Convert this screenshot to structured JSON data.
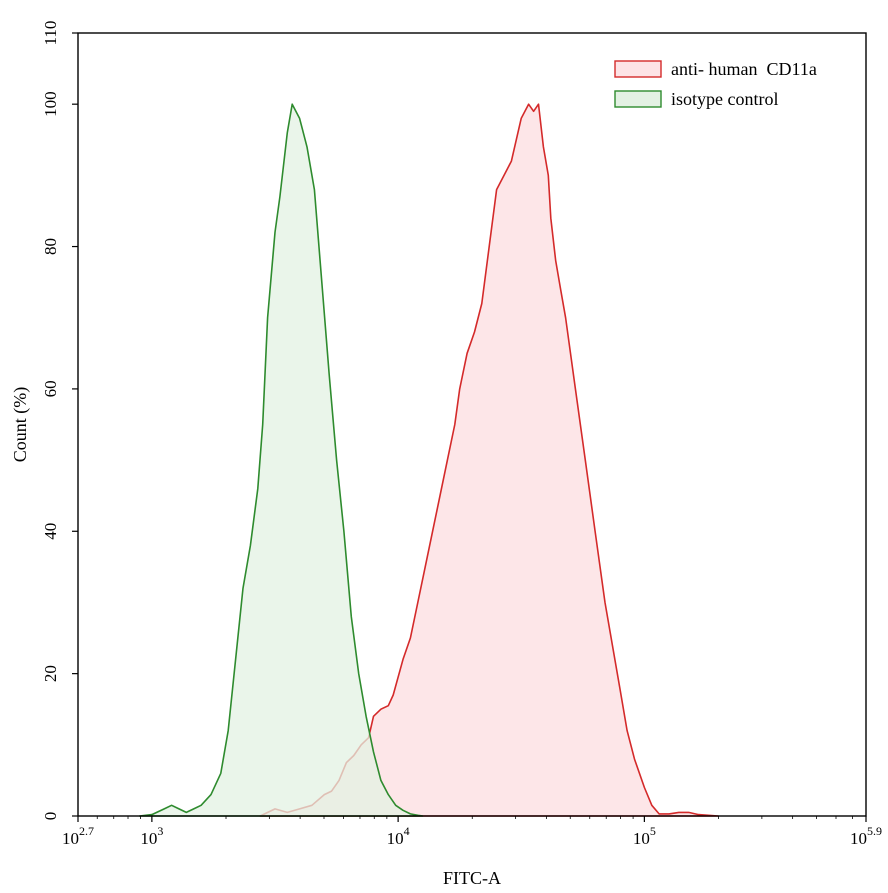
{
  "chart_data": {
    "type": "area",
    "title": "",
    "xlabel": "FITC-A",
    "ylabel": "Count (%)",
    "x_scale": "log10",
    "xlim": [
      2.7,
      5.9
    ],
    "ylim": [
      0,
      110
    ],
    "grid": false,
    "legend_position": "top-right",
    "x_ticks": [
      {
        "base": "10",
        "exp": "2.7",
        "value": 2.7
      },
      {
        "base": "10",
        "exp": "3",
        "value": 3
      },
      {
        "base": "10",
        "exp": "4",
        "value": 4
      },
      {
        "base": "10",
        "exp": "5",
        "value": 5
      },
      {
        "base": "10",
        "exp": "5.9",
        "value": 5.9
      }
    ],
    "y_ticks": [
      "0",
      "20",
      "40",
      "60",
      "80",
      "100",
      "110"
    ],
    "series": [
      {
        "name": "anti- human  CD11a",
        "stroke": "#d42a2a",
        "fill": "#fde3e6",
        "x_log10": [
          3.44,
          3.5,
          3.55,
          3.6,
          3.65,
          3.7,
          3.73,
          3.76,
          3.79,
          3.82,
          3.85,
          3.88,
          3.9,
          3.93,
          3.96,
          3.98,
          4.02,
          4.05,
          4.08,
          4.11,
          4.14,
          4.17,
          4.2,
          4.23,
          4.25,
          4.28,
          4.31,
          4.34,
          4.37,
          4.4,
          4.43,
          4.46,
          4.5,
          4.53,
          4.55,
          4.57,
          4.59,
          4.61,
          4.62,
          4.64,
          4.66,
          4.68,
          4.72,
          4.76,
          4.8,
          4.84,
          4.87,
          4.9,
          4.93,
          4.96,
          5.0,
          5.03,
          5.06,
          5.1,
          5.14,
          5.18,
          5.22,
          5.26,
          5.3
        ],
        "y": [
          0,
          1,
          0.5,
          1,
          1.5,
          3,
          3.5,
          5,
          7.5,
          8.5,
          10,
          11,
          14,
          15,
          15.5,
          17,
          22,
          25,
          30,
          35,
          40,
          45,
          50,
          55,
          60,
          65,
          68,
          72,
          80,
          88,
          90,
          92,
          98,
          100,
          99,
          100,
          94,
          90,
          84,
          78,
          74,
          70,
          60,
          50,
          40,
          30,
          24,
          18,
          12,
          8,
          4,
          1.5,
          0.3,
          0.3,
          0.5,
          0.5,
          0.2,
          0.1,
          0
        ],
        "peak": 100
      },
      {
        "name": "isotype control",
        "stroke": "#2e8b2e",
        "fill": "#e3f1e3",
        "x_log10": [
          2.95,
          3.0,
          3.05,
          3.08,
          3.11,
          3.14,
          3.17,
          3.2,
          3.24,
          3.28,
          3.31,
          3.34,
          3.37,
          3.4,
          3.43,
          3.45,
          3.47,
          3.5,
          3.52,
          3.55,
          3.57,
          3.6,
          3.63,
          3.66,
          3.69,
          3.72,
          3.75,
          3.78,
          3.81,
          3.84,
          3.87,
          3.9,
          3.93,
          3.96,
          3.99,
          4.02,
          4.05,
          4.08,
          4.1
        ],
        "y": [
          0,
          0.2,
          1,
          1.5,
          1,
          0.5,
          1,
          1.5,
          3,
          6,
          12,
          22,
          32,
          38,
          46,
          55,
          70,
          82,
          87,
          96,
          100,
          98,
          94,
          88,
          75,
          62,
          50,
          40,
          28,
          20,
          14,
          9,
          5,
          3,
          1.5,
          0.8,
          0.3,
          0.1,
          0
        ],
        "peak": 100
      }
    ]
  }
}
